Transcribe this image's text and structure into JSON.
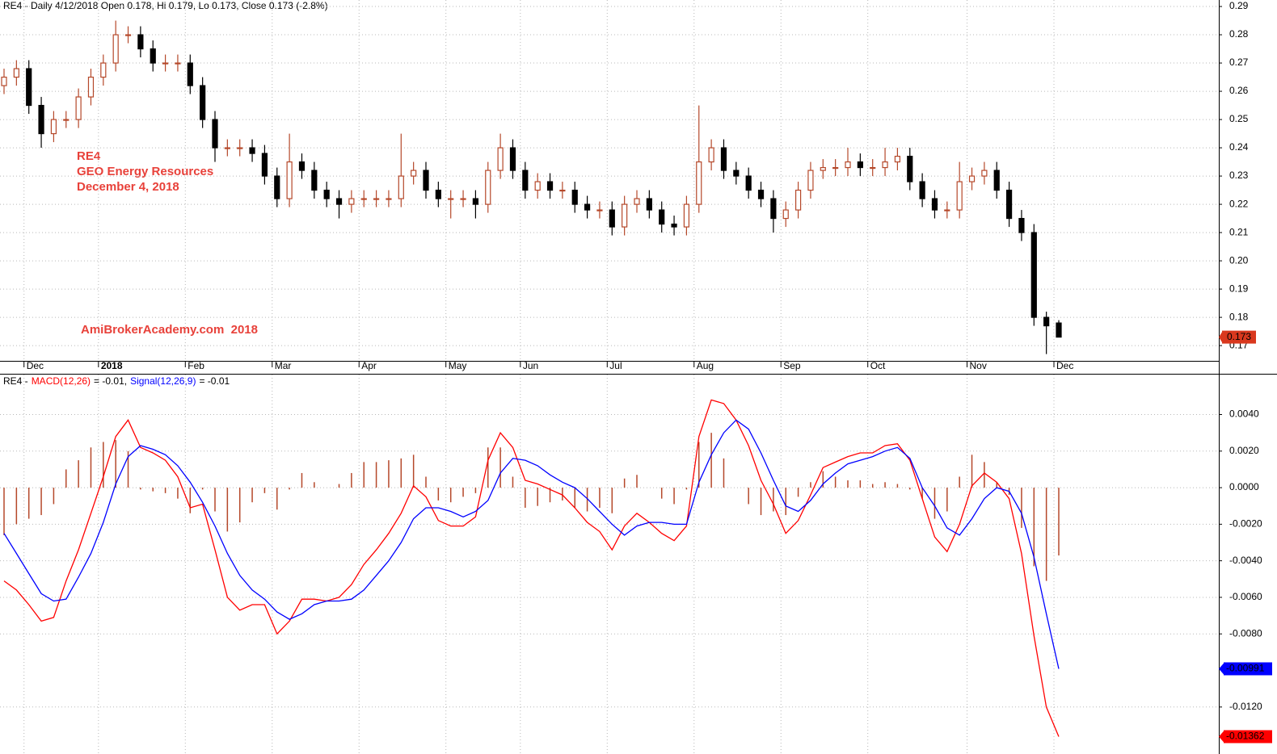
{
  "chart_data": [
    {
      "type": "candlestick",
      "title": "RE4 - Daily 4/12/2018 Open 0.178, Hi 0.179, Lo 0.173, Close 0.173 (-2.8%)",
      "annotations": [
        "RE4",
        "GEO Energy Resources",
        "December 4, 2018"
      ],
      "watermark": "AmiBrokerAcademy.com  2018",
      "up_color": "#b5482a",
      "down_color": "#000000",
      "grid": true,
      "categories": [
        null,
        null,
        "Dec",
        null,
        null,
        null,
        null,
        null,
        "2018",
        null,
        null,
        null,
        null,
        null,
        null,
        "Feb",
        null,
        null,
        null,
        null,
        null,
        null,
        "Mar",
        null,
        null,
        null,
        null,
        null,
        null,
        "Apr",
        null,
        null,
        null,
        null,
        null,
        null,
        "May",
        null,
        null,
        null,
        null,
        null,
        "Jun",
        null,
        null,
        null,
        null,
        null,
        null,
        "Jul",
        null,
        null,
        null,
        null,
        null,
        null,
        "Aug",
        null,
        null,
        null,
        null,
        null,
        null,
        "Sep",
        null,
        null,
        null,
        null,
        null,
        null,
        "Oct",
        null,
        null,
        null,
        null,
        null,
        null,
        null,
        "Nov",
        null,
        null,
        null,
        null,
        null,
        null,
        "Dec"
      ],
      "open": [
        0.262,
        0.265,
        0.268,
        0.255,
        0.245,
        0.25,
        0.25,
        0.258,
        0.265,
        0.27,
        0.28,
        0.28,
        0.275,
        0.27,
        0.27,
        0.27,
        0.262,
        0.25,
        0.24,
        0.24,
        0.24,
        0.238,
        0.23,
        0.222,
        0.235,
        0.232,
        0.225,
        0.222,
        0.22,
        0.222,
        0.222,
        0.222,
        0.222,
        0.23,
        0.232,
        0.225,
        0.222,
        0.222,
        0.222,
        0.22,
        0.232,
        0.24,
        0.232,
        0.225,
        0.228,
        0.225,
        0.225,
        0.22,
        0.218,
        0.218,
        0.212,
        0.22,
        0.222,
        0.218,
        0.213,
        0.212,
        0.22,
        0.235,
        0.24,
        0.232,
        0.23,
        0.225,
        0.222,
        0.215,
        0.218,
        0.225,
        0.232,
        0.233,
        0.233,
        0.235,
        0.233,
        0.233,
        0.235,
        0.237,
        0.228,
        0.222,
        0.218,
        0.218,
        0.228,
        0.23,
        0.232,
        0.225,
        0.215,
        0.21,
        0.18,
        0.178
      ],
      "high": [
        0.268,
        0.271,
        0.271,
        0.258,
        0.253,
        0.253,
        0.261,
        0.268,
        0.273,
        0.285,
        0.283,
        0.283,
        0.278,
        0.273,
        0.273,
        0.273,
        0.265,
        0.253,
        0.243,
        0.243,
        0.243,
        0.241,
        0.233,
        0.245,
        0.238,
        0.235,
        0.228,
        0.225,
        0.225,
        0.225,
        0.225,
        0.225,
        0.245,
        0.235,
        0.235,
        0.228,
        0.225,
        0.225,
        0.225,
        0.235,
        0.245,
        0.243,
        0.235,
        0.231,
        0.231,
        0.228,
        0.228,
        0.223,
        0.221,
        0.221,
        0.223,
        0.225,
        0.225,
        0.221,
        0.216,
        0.223,
        0.255,
        0.243,
        0.243,
        0.235,
        0.233,
        0.228,
        0.225,
        0.221,
        0.228,
        0.235,
        0.236,
        0.236,
        0.24,
        0.238,
        0.236,
        0.24,
        0.24,
        0.24,
        0.231,
        0.225,
        0.221,
        0.235,
        0.233,
        0.235,
        0.235,
        0.228,
        0.218,
        0.213,
        0.182,
        0.179
      ],
      "low": [
        0.259,
        0.262,
        0.252,
        0.24,
        0.242,
        0.247,
        0.247,
        0.255,
        0.262,
        0.267,
        0.277,
        0.272,
        0.267,
        0.267,
        0.267,
        0.259,
        0.247,
        0.235,
        0.237,
        0.237,
        0.235,
        0.227,
        0.219,
        0.219,
        0.229,
        0.222,
        0.219,
        0.215,
        0.217,
        0.219,
        0.219,
        0.219,
        0.219,
        0.227,
        0.222,
        0.219,
        0.215,
        0.219,
        0.215,
        0.217,
        0.229,
        0.229,
        0.222,
        0.222,
        0.222,
        0.222,
        0.217,
        0.215,
        0.215,
        0.209,
        0.209,
        0.217,
        0.215,
        0.21,
        0.209,
        0.209,
        0.217,
        0.232,
        0.229,
        0.227,
        0.222,
        0.219,
        0.21,
        0.212,
        0.215,
        0.222,
        0.229,
        0.23,
        0.23,
        0.23,
        0.23,
        0.23,
        0.232,
        0.225,
        0.219,
        0.215,
        0.215,
        0.215,
        0.225,
        0.227,
        0.222,
        0.212,
        0.207,
        0.177,
        0.167,
        0.173
      ],
      "close": [
        0.265,
        0.268,
        0.255,
        0.245,
        0.25,
        0.25,
        0.258,
        0.265,
        0.27,
        0.28,
        0.28,
        0.275,
        0.27,
        0.27,
        0.27,
        0.262,
        0.25,
        0.24,
        0.24,
        0.24,
        0.238,
        0.23,
        0.222,
        0.235,
        0.232,
        0.225,
        0.222,
        0.22,
        0.222,
        0.222,
        0.222,
        0.222,
        0.23,
        0.232,
        0.225,
        0.222,
        0.222,
        0.222,
        0.22,
        0.232,
        0.24,
        0.232,
        0.225,
        0.228,
        0.225,
        0.225,
        0.22,
        0.218,
        0.218,
        0.212,
        0.22,
        0.222,
        0.218,
        0.213,
        0.212,
        0.22,
        0.235,
        0.24,
        0.232,
        0.23,
        0.225,
        0.222,
        0.215,
        0.218,
        0.225,
        0.232,
        0.233,
        0.233,
        0.235,
        0.233,
        0.233,
        0.235,
        0.237,
        0.228,
        0.222,
        0.218,
        0.218,
        0.228,
        0.23,
        0.232,
        0.225,
        0.215,
        0.21,
        0.18,
        0.177,
        0.173
      ],
      "ylim": [
        0.1646,
        0.2923
      ],
      "yticks": [
        0.17,
        0.18,
        0.19,
        {
          "value": 0.2,
          "label": "0.20"
        },
        0.21,
        0.22,
        0.23,
        0.24,
        0.25,
        0.26,
        0.27,
        0.28,
        0.29
      ]
    },
    {
      "type": "macd",
      "title_prefix": "RE4 -",
      "readouts": [
        "= -0.01,",
        "= -0.01"
      ],
      "grid": true,
      "series": [
        {
          "name": "MACD(12,26)",
          "color": "#ff0000",
          "values": [
            -0.0051,
            -0.0056,
            -0.0064,
            -0.0073,
            -0.0071,
            -0.0051,
            -0.0034,
            -0.0014,
            0.0006,
            0.0028,
            0.0037,
            0.0022,
            0.0019,
            0.0015,
            0.0006,
            -0.0011,
            -0.0009,
            -0.0034,
            -0.006,
            -0.0067,
            -0.0064,
            -0.0064,
            -0.008,
            -0.0073,
            -0.0061,
            -0.0061,
            -0.0062,
            -0.006,
            -0.0053,
            -0.0042,
            -0.0034,
            -0.0025,
            -0.0014,
            0.0001,
            -0.0005,
            -0.0018,
            -0.0021,
            -0.0021,
            -0.0016,
            0.0015,
            0.003,
            0.0022,
            0.0004,
            0.0002,
            -0.0001,
            -0.0004,
            -0.0011,
            -0.0019,
            -0.0024,
            -0.0034,
            -0.0021,
            -0.0014,
            -0.0019,
            -0.0025,
            -0.0029,
            -0.0021,
            0.0028,
            0.0048,
            0.0046,
            0.0037,
            0.0023,
            0.0004,
            -0.0009,
            -0.0025,
            -0.0018,
            -0.0004,
            0.0011,
            0.0014,
            0.0017,
            0.0019,
            0.0019,
            0.0023,
            0.0024,
            0.0015,
            -0.0006,
            -0.0027,
            -0.0035,
            -0.002,
            0.0001,
            0.0008,
            0.0003,
            -0.0006,
            -0.0036,
            -0.0081,
            -0.012,
            -0.01362
          ]
        },
        {
          "name": "Signal(12,26,9)",
          "color": "#0000ff",
          "values": [
            -0.0025,
            -0.0036,
            -0.0047,
            -0.0058,
            -0.0062,
            -0.0061,
            -0.0049,
            -0.0036,
            -0.0019,
            0.0002,
            0.0017,
            0.0023,
            0.0021,
            0.0018,
            0.0012,
            0.0003,
            -0.0008,
            -0.0021,
            -0.0036,
            -0.0048,
            -0.0056,
            -0.0061,
            -0.0068,
            -0.0072,
            -0.0069,
            -0.0064,
            -0.0062,
            -0.0062,
            -0.0061,
            -0.0056,
            -0.0048,
            -0.004,
            -0.003,
            -0.0017,
            -0.0011,
            -0.0011,
            -0.0013,
            -0.0016,
            -0.0013,
            -0.0007,
            0.0008,
            0.0016,
            0.0015,
            0.0012,
            0.0007,
            0.0003,
            0,
            -0.0006,
            -0.0013,
            -0.002,
            -0.0026,
            -0.0021,
            -0.0019,
            -0.0019,
            -0.002,
            -0.002,
            0.0003,
            0.0018,
            0.003,
            0.0037,
            0.0032,
            0.0019,
            0.0004,
            -0.001,
            -0.0013,
            -0.0007,
            0.0002,
            0.0008,
            0.0013,
            0.0015,
            0.0017,
            0.002,
            0.0022,
            0.0016,
            0,
            -0.001,
            -0.0022,
            -0.0026,
            -0.0017,
            -0.0006,
            0,
            -0.0002,
            -0.0014,
            -0.0038,
            -0.0069,
            -0.00991
          ]
        }
      ],
      "histogram": {
        "color": "#b5482a",
        "values": [
          -0.0026,
          -0.002,
          -0.0017,
          -0.0015,
          -0.0009,
          0.001,
          0.0015,
          0.0022,
          0.0025,
          0.0026,
          0.002,
          -0.0001,
          -0.0002,
          -0.0003,
          -0.0006,
          -0.0014,
          -0.0001,
          -0.0013,
          -0.0024,
          -0.0019,
          -0.0008,
          -0.0003,
          -0.0012,
          -0.0001,
          0.0008,
          0.0003,
          0,
          0.0002,
          0.0008,
          0.0014,
          0.0014,
          0.0015,
          0.0016,
          0.0018,
          0.0006,
          -0.0007,
          -0.0008,
          -0.0005,
          -0.0003,
          0.0022,
          0.0022,
          0.0006,
          -0.0011,
          -0.001,
          -0.0008,
          -0.0007,
          -0.0011,
          -0.0013,
          -0.0011,
          -0.0014,
          0.0005,
          0.0007,
          0,
          -0.0006,
          -0.0009,
          -0.0001,
          0.0025,
          0.003,
          0.0016,
          0,
          -0.0009,
          -0.0015,
          -0.0013,
          -0.0015,
          -0.0005,
          0.0003,
          0.0009,
          0.0006,
          0.0004,
          0.0004,
          0.0002,
          0.0003,
          0.0002,
          -0.0001,
          -0.0006,
          -0.0017,
          -0.0013,
          0.0006,
          0.0018,
          0.0014,
          0.0003,
          -0.0004,
          -0.0022,
          -0.0043,
          -0.0051,
          -0.00371
        ]
      },
      "ylim": [
        -0.01457,
        0.00623
      ],
      "yticks": [
        {
          "value": 0.004,
          "label": "0.0040"
        },
        {
          "value": 0.002,
          "label": "0.0020"
        },
        {
          "value": 0,
          "label": "0.0000"
        },
        {
          "value": -0.002,
          "label": "-0.0020"
        },
        {
          "value": -0.004,
          "label": "-0.0040"
        },
        {
          "value": -0.006,
          "label": "-0.0060"
        },
        {
          "value": -0.008,
          "label": "-0.0080"
        },
        {
          "value": -0.012,
          "label": "-0.0120"
        }
      ]
    }
  ]
}
